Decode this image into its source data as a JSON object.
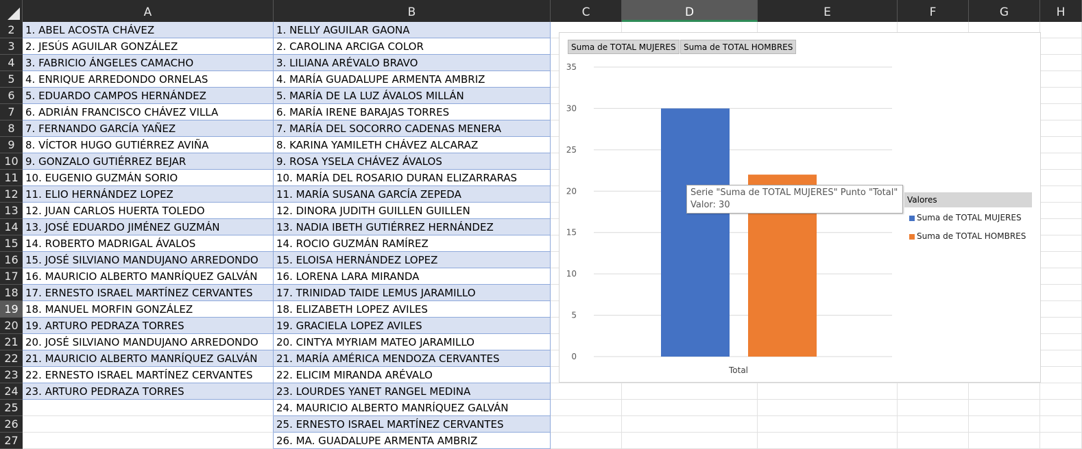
{
  "columns": [
    {
      "label": "A"
    },
    {
      "label": "B"
    },
    {
      "label": "C"
    },
    {
      "label": "D"
    },
    {
      "label": "E"
    },
    {
      "label": "F"
    },
    {
      "label": "G"
    },
    {
      "label": "H"
    }
  ],
  "selected_column": "D",
  "selected_row": "19",
  "rows": [
    {
      "num": "2",
      "a": "1. ABEL ACOSTA CHÁVEZ",
      "b": "1. NELLY AGUILAR GAONA"
    },
    {
      "num": "3",
      "a": "2. JESÚS AGUILAR GONZÁLEZ",
      "b": "2. CAROLINA ARCIGA COLOR"
    },
    {
      "num": "4",
      "a": "3. FABRICIO ÁNGELES CAMACHO",
      "b": "3. LILIANA ARÉVALO BRAVO"
    },
    {
      "num": "5",
      "a": "4. ENRIQUE ARREDONDO ORNELAS",
      "b": "4. MARÍA GUADALUPE ARMENTA AMBRIZ"
    },
    {
      "num": "6",
      "a": "5. EDUARDO CAMPOS HERNÁNDEZ",
      "b": "5. MARÍA DE LA LUZ ÁVALOS MILLÁN"
    },
    {
      "num": "7",
      "a": "6. ADRIÁN FRANCISCO CHÁVEZ VILLA",
      "b": "6. MARÍA IRENE BARAJAS TORRES"
    },
    {
      "num": "8",
      "a": "7. FERNANDO GARCÍA YAÑEZ",
      "b": "7. MARÍA DEL SOCORRO CADENAS MENERA"
    },
    {
      "num": "9",
      "a": "8. VÍCTOR HUGO GUTIÉRREZ AVIÑA",
      "b": "8. KARINA YAMILETH CHÁVEZ ALCARAZ"
    },
    {
      "num": "10",
      "a": "9. GONZALO GUTIÉRREZ BEJAR",
      "b": "9. ROSA YSELA CHÁVEZ ÁVALOS"
    },
    {
      "num": "11",
      "a": "10. EUGENIO GUZMÁN SORIO",
      "b": "10. MARÍA DEL ROSARIO DURAN ELIZARRARAS"
    },
    {
      "num": "12",
      "a": "11. ELIO HERNÁNDEZ LOPEZ",
      "b": "11. MARÍA SUSANA GARCÍA ZEPEDA"
    },
    {
      "num": "13",
      "a": "12. JUAN CARLOS HUERTA TOLEDO",
      "b": "12. DINORA JUDITH GUILLEN GUILLEN"
    },
    {
      "num": "14",
      "a": "13. JOSÉ EDUARDO JIMÉNEZ GUZMÁN",
      "b": "13. NADIA IBETH GUTIÉRREZ HERNÁNDEZ"
    },
    {
      "num": "15",
      "a": "14. ROBERTO MADRIGAL ÁVALOS",
      "b": "14. ROCIO GUZMÁN RAMÍREZ"
    },
    {
      "num": "16",
      "a": "15. JOSÉ SILVIANO MANDUJANO ARREDONDO",
      "b": "15. ELOISA HERNÁNDEZ LOPEZ"
    },
    {
      "num": "17",
      "a": "16. MAURICIO ALBERTO MANRÍQUEZ GALVÁN",
      "b": "16. LORENA LARA MIRANDA"
    },
    {
      "num": "18",
      "a": "17. ERNESTO ISRAEL MARTÍNEZ CERVANTES",
      "b": "17. TRINIDAD TAIDE LEMUS JARAMILLO"
    },
    {
      "num": "19",
      "a": "18. MANUEL MORFIN GONZÁLEZ",
      "b": "18. ELIZABETH LOPEZ AVILES"
    },
    {
      "num": "20",
      "a": "19. ARTURO PEDRAZA TORRES",
      "b": "19. GRACIELA LOPEZ AVILES"
    },
    {
      "num": "21",
      "a": "20. JOSÉ SILVIANO MANDUJANO ARREDONDO",
      "b": "20. CINTYA MYRIAM MATEO JARAMILLO"
    },
    {
      "num": "22",
      "a": "21. MAURICIO ALBERTO MANRÍQUEZ GALVÁN",
      "b": "21. MARÍA AMÉRICA MENDOZA CERVANTES"
    },
    {
      "num": "23",
      "a": "22. ERNESTO ISRAEL MARTÍNEZ CERVANTES",
      "b": "22. ELICIM MIRANDA ARÉVALO"
    },
    {
      "num": "24",
      "a": "23. ARTURO PEDRAZA TORRES",
      "b": "23. LOURDES YANET RANGEL MEDINA"
    },
    {
      "num": "25",
      "a": "",
      "b": "24. MAURICIO ALBERTO MANRÍQUEZ GALVÁN"
    },
    {
      "num": "26",
      "a": "",
      "b": "25. ERNESTO ISRAEL MARTÍNEZ CERVANTES"
    },
    {
      "num": "27",
      "a": "",
      "b": "26. MA. GUADALUPE ARMENTA AMBRIZ"
    }
  ],
  "chart": {
    "field_buttons": [
      "Suma de TOTAL MUJERES",
      "Suma de TOTAL HOMBRES"
    ],
    "tooltip_line1": "Serie \"Suma de TOTAL MUJERES\" Punto \"Total\"",
    "tooltip_line2": "Valor: 30",
    "legend_title": "Valores"
  },
  "chart_data": {
    "type": "bar",
    "categories": [
      "Total"
    ],
    "series": [
      {
        "name": "Suma de TOTAL MUJERES",
        "values": [
          30
        ],
        "color": "#4472c4"
      },
      {
        "name": "Suma de TOTAL HOMBRES",
        "values": [
          22
        ],
        "color": "#ed7d31"
      }
    ],
    "ylim": [
      0,
      35
    ],
    "yticks": [
      "0",
      "5",
      "10",
      "15",
      "20",
      "25",
      "30",
      "35"
    ],
    "grid": true,
    "legend_position": "right"
  }
}
